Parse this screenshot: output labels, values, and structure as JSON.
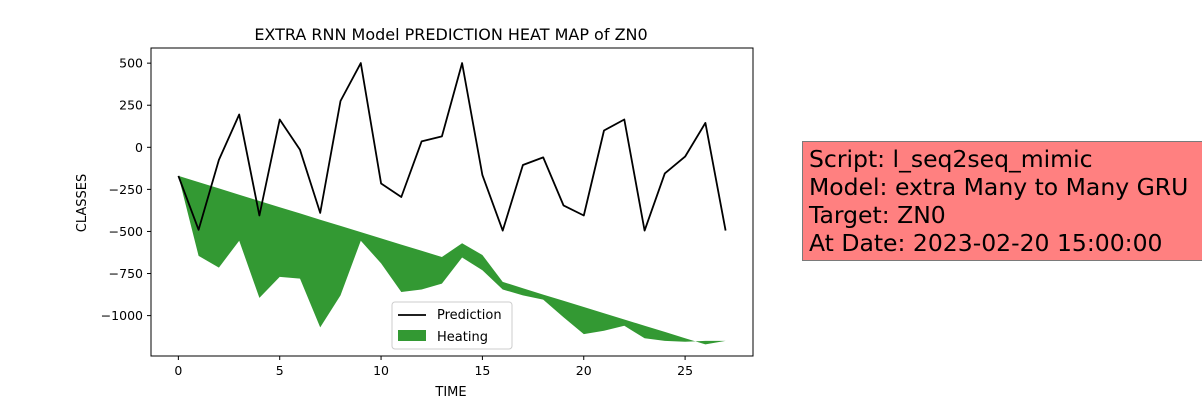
{
  "chart_data": {
    "type": "line",
    "title": "EXTRA RNN Model PREDICTION HEAT MAP of ZN0",
    "xlabel": "TIME",
    "ylabel": "CLASSES",
    "xlim": [
      -1.35,
      28.35
    ],
    "ylim": [
      -1240,
      590
    ],
    "xticks": [
      0,
      5,
      10,
      15,
      20,
      25
    ],
    "yticks": [
      500,
      250,
      0,
      -250,
      -500,
      -750,
      -1000
    ],
    "ytick_labels": [
      "500",
      "250",
      "0",
      "−250",
      "−500",
      "−750",
      "−1000"
    ],
    "grid": false,
    "legend_position": "lower-center",
    "series": [
      {
        "name": "Prediction",
        "type": "line",
        "color": "#000000",
        "x": [
          0,
          1,
          2,
          3,
          4,
          5,
          6,
          7,
          8,
          9,
          10,
          11,
          12,
          13,
          14,
          15,
          16,
          17,
          18,
          19,
          20,
          21,
          22,
          23,
          24,
          25,
          26,
          27
        ],
        "y": [
          -170,
          -490,
          -75,
          195,
          -405,
          165,
          -15,
          -390,
          275,
          500,
          -215,
          -295,
          35,
          65,
          500,
          -165,
          -495,
          -105,
          -60,
          -345,
          -405,
          100,
          165,
          -495,
          -155,
          -55,
          145,
          -495
        ]
      },
      {
        "name": "Heating",
        "type": "area",
        "color": "#339933",
        "x": [
          0,
          1,
          2,
          3,
          4,
          5,
          6,
          7,
          8,
          9,
          10,
          11,
          12,
          13,
          14,
          15,
          16,
          17,
          18,
          19,
          20,
          21,
          22,
          23,
          24,
          25,
          26,
          27
        ],
        "y_upper": [
          -170,
          -207,
          -244,
          -282,
          -319,
          -356,
          -393,
          -430,
          -467,
          -504,
          -541,
          -578,
          -615,
          -652,
          -570,
          -640,
          -800,
          -837,
          -875,
          -912,
          -949,
          -986,
          -1023,
          -1060,
          -1097,
          -1134,
          -1171,
          -1150
        ],
        "y_lower": [
          -170,
          -645,
          -715,
          -555,
          -895,
          -770,
          -780,
          -1070,
          -880,
          -555,
          -690,
          -860,
          -845,
          -810,
          -655,
          -730,
          -845,
          -880,
          -905,
          -1010,
          -1110,
          -1090,
          -1060,
          -1135,
          -1150,
          -1155,
          -1150,
          -1150
        ]
      }
    ]
  },
  "info_box": {
    "line1": "Script: l_seq2seq_mimic",
    "line2": "Model: extra Many to Many GRU",
    "line3": "Target: ZN0",
    "line4": "At Date: 2023-02-20 15:00:00"
  }
}
